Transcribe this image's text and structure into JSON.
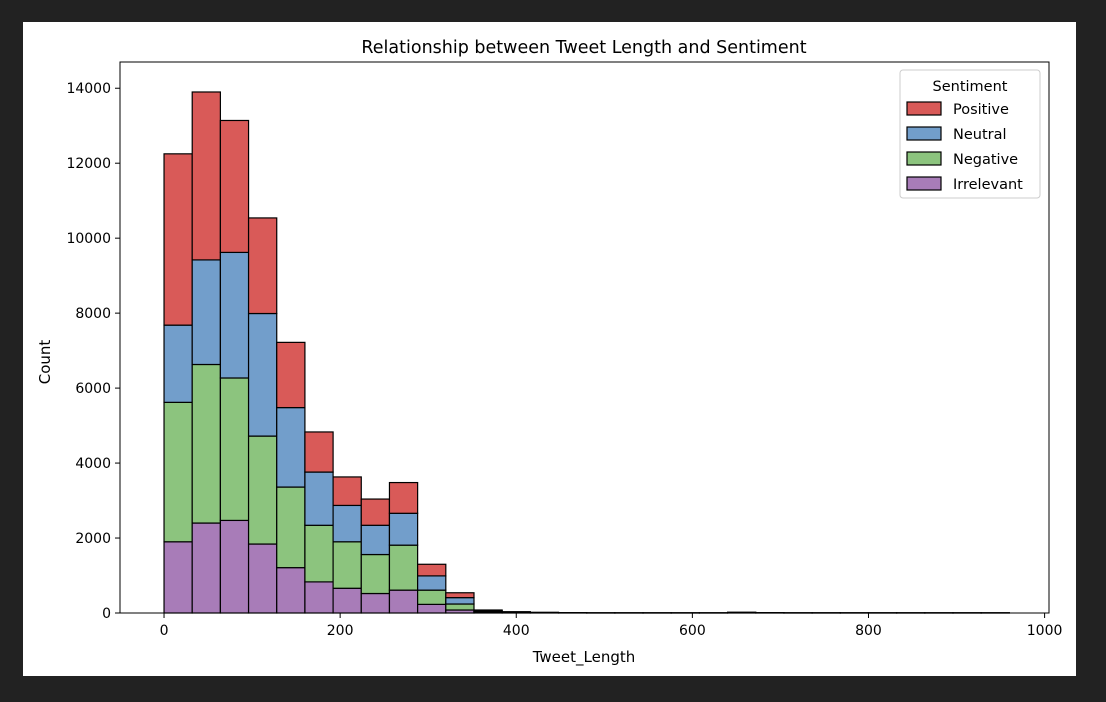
{
  "chart_data": {
    "type": "bar",
    "stacked": true,
    "title": "Relationship between Tweet Length and Sentiment",
    "xlabel": "Tweet_Length",
    "ylabel": "Count",
    "xlim": [
      -50,
      1005
    ],
    "ylim": [
      0,
      14700
    ],
    "xticks": [
      0,
      200,
      400,
      600,
      800,
      1000
    ],
    "yticks": [
      0,
      2000,
      4000,
      6000,
      8000,
      10000,
      12000,
      14000
    ],
    "grid": false,
    "legend": {
      "title": "Sentiment",
      "position": "top-right"
    },
    "bin_width": 32,
    "bin_edges": [
      0,
      32,
      64,
      96,
      128,
      160,
      192,
      224,
      256,
      288,
      320,
      352,
      384,
      416,
      448,
      480,
      512,
      544,
      576,
      608,
      640,
      672,
      704,
      736,
      768,
      800,
      832,
      864,
      896,
      928,
      960
    ],
    "series": [
      {
        "name": "Irrelevant",
        "color": "#a87cb8",
        "values": [
          1900,
          2400,
          2470,
          1840,
          1210,
          830,
          660,
          520,
          610,
          230,
          80,
          20,
          5,
          3,
          2,
          1,
          1,
          1,
          1,
          1,
          4,
          2,
          1,
          1,
          1,
          1,
          1,
          1,
          1,
          1
        ]
      },
      {
        "name": "Negative",
        "color": "#8cc47e",
        "values": [
          3720,
          4230,
          3800,
          2880,
          2150,
          1510,
          1240,
          1040,
          1200,
          380,
          160,
          20,
          10,
          5,
          2,
          1,
          1,
          1,
          1,
          1,
          6,
          2,
          1,
          1,
          1,
          1,
          1,
          1,
          1,
          1
        ]
      },
      {
        "name": "Neutral",
        "color": "#729ecb",
        "values": [
          2060,
          2790,
          3350,
          3270,
          2120,
          1420,
          970,
          780,
          850,
          380,
          170,
          20,
          10,
          5,
          2,
          1,
          1,
          1,
          1,
          1,
          6,
          2,
          1,
          1,
          1,
          1,
          1,
          1,
          1,
          1
        ]
      },
      {
        "name": "Positive",
        "color": "#d95a58",
        "values": [
          4570,
          4480,
          3520,
          2550,
          1740,
          1070,
          760,
          700,
          820,
          310,
          130,
          20,
          10,
          5,
          2,
          1,
          1,
          1,
          1,
          1,
          4,
          2,
          1,
          1,
          1,
          1,
          1,
          1,
          1,
          1
        ]
      }
    ]
  }
}
